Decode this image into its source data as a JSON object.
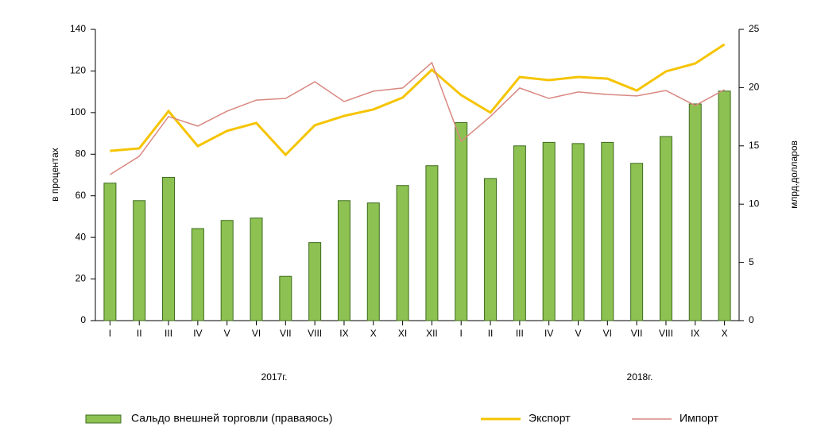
{
  "chart_data": {
    "type": "bar",
    "ylabel": "в процентах",
    "y2label": "млрд.долларов",
    "categories": [
      "I",
      "II",
      "III",
      "IV",
      "V",
      "VI",
      "VII",
      "VIII",
      "IX",
      "X",
      "XI",
      "XII",
      "I",
      "II",
      "III",
      "IV",
      "V",
      "VI",
      "VII",
      "VIII",
      "IX",
      "X"
    ],
    "annotations": [
      "2017г.",
      "2018г."
    ],
    "series": [
      {
        "name": "Сальдо внешней торговли (праваяось)",
        "type": "bar",
        "axis": "y2",
        "color": "#8dc152",
        "values": [
          11.8,
          10.3,
          12.3,
          7.9,
          8.6,
          8.8,
          3.8,
          6.7,
          10.3,
          10.1,
          11.6,
          13.3,
          17.0,
          12.2,
          15.0,
          15.3,
          15.2,
          15.3,
          13.5,
          15.8,
          18.6,
          19.7
        ]
      },
      {
        "name": "Экспорт",
        "type": "line",
        "color": "#f5c400",
        "values": [
          81.6,
          82.8,
          100.7,
          83.9,
          91.2,
          95.0,
          79.7,
          93.9,
          98.4,
          101.5,
          107.2,
          120.6,
          108.4,
          100.0,
          117.1,
          115.6,
          117.1,
          116.3,
          110.6,
          119.8,
          123.6,
          132.8
        ]
      },
      {
        "name": "Импорт",
        "type": "line",
        "color": "#d98880",
        "values": [
          70.2,
          79.0,
          98.1,
          93.5,
          100.7,
          106.0,
          106.8,
          114.8,
          105.3,
          110.3,
          111.8,
          124.0,
          86.2,
          98.1,
          111.8,
          106.8,
          109.9,
          108.7,
          108.0,
          110.6,
          103.4,
          111.0
        ]
      }
    ],
    "ylim": [
      0,
      140
    ],
    "yticks": [
      0,
      20,
      40,
      60,
      80,
      100,
      120,
      140
    ],
    "y2lim": [
      0,
      25
    ],
    "y2ticks": [
      0,
      5,
      10,
      15,
      20,
      25
    ],
    "grid": false
  }
}
